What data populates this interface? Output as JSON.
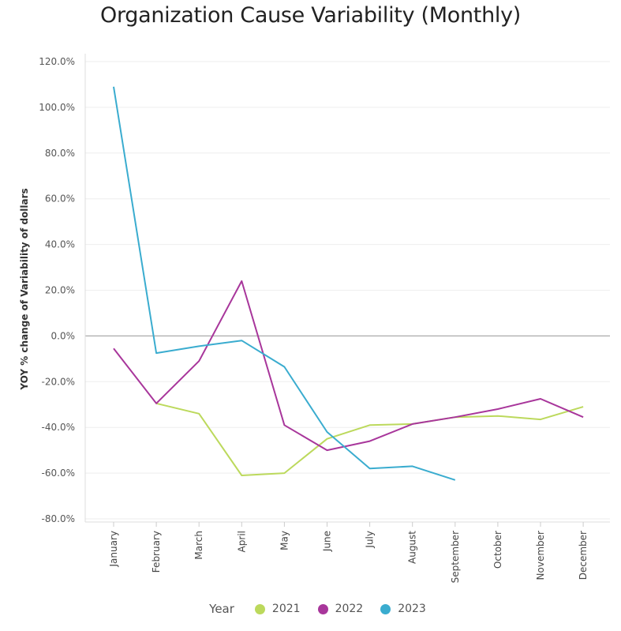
{
  "chart_data": {
    "type": "line",
    "title": "Organization Cause Variability (Monthly)",
    "ylabel": "YOY % change of Variability of dollars",
    "xlabel": "",
    "categories": [
      "January",
      "February",
      "March",
      "April",
      "May",
      "June",
      "July",
      "August",
      "September",
      "October",
      "November",
      "December"
    ],
    "ylim": [
      -80,
      120
    ],
    "yticks": [
      120,
      100,
      80,
      60,
      40,
      20,
      0,
      -20,
      -40,
      -60,
      -80
    ],
    "ytick_labels": [
      "120.0%",
      "100.0%",
      "80.0%",
      "60.0%",
      "40.0%",
      "20.0%",
      "0.0%",
      "-20.0%",
      "-40.0%",
      "-60.0%",
      "-80.0%"
    ],
    "grid": true,
    "legend_title": "Year",
    "legend_position": "bottom",
    "series": [
      {
        "name": "2021",
        "color": "#bcd95c",
        "values": [
          null,
          -29.5,
          -34,
          -61,
          -60,
          -45,
          -39,
          -38.5,
          -35.5,
          -35,
          -36.5,
          -31
        ]
      },
      {
        "name": "2022",
        "color": "#a8369b",
        "values": [
          -5.5,
          -29.5,
          -11,
          24,
          -39,
          -50,
          -46,
          -38.5,
          -35.5,
          -32,
          -27.5,
          -35.5
        ]
      },
      {
        "name": "2023",
        "color": "#3aaccf",
        "values": [
          109,
          -7.5,
          -4.5,
          -2,
          -13.5,
          -42,
          -58,
          -57,
          -63,
          null,
          null,
          null
        ]
      }
    ]
  }
}
